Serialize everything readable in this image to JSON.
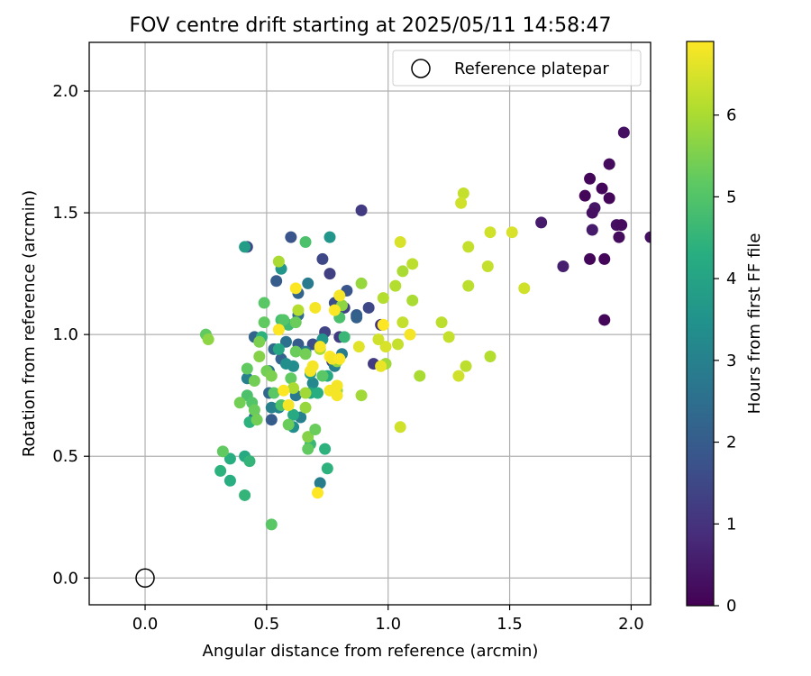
{
  "chart_data": {
    "type": "scatter",
    "title": "FOV centre drift starting at 2025/05/11 14:58:47",
    "xlabel": "Angular distance from reference (arcmin)",
    "ylabel": "Rotation from reference (arcmin)",
    "xlim": [
      -0.23,
      2.08
    ],
    "ylim": [
      -0.11,
      2.2
    ],
    "xticks": [
      "0.0",
      "0.5",
      "1.0",
      "1.5",
      "2.0"
    ],
    "yticks": [
      "0.0",
      "0.5",
      "1.0",
      "1.5",
      "2.0"
    ],
    "grid": true,
    "legend": {
      "position": "top-right",
      "label": "Reference platepar"
    },
    "reference_point": {
      "x": 0.0,
      "y": 0.0
    },
    "colorbar": {
      "label": "Hours from first FF file",
      "ticks": [
        "0",
        "1",
        "2",
        "3",
        "4",
        "5",
        "6"
      ],
      "range": [
        0,
        6.9
      ],
      "colormap": "viridis"
    },
    "points": [
      [
        1.97,
        1.83,
        0.3
      ],
      [
        1.91,
        1.7,
        0.2
      ],
      [
        1.83,
        1.64,
        0.1
      ],
      [
        1.88,
        1.6,
        0.1
      ],
      [
        1.81,
        1.57,
        0.1
      ],
      [
        1.91,
        1.56,
        0.1
      ],
      [
        1.85,
        1.52,
        0.4
      ],
      [
        1.84,
        1.5,
        0.3
      ],
      [
        1.63,
        1.46,
        0.5
      ],
      [
        1.94,
        1.45,
        0.3
      ],
      [
        1.96,
        1.45,
        0.2
      ],
      [
        1.84,
        1.43,
        0.5
      ],
      [
        1.95,
        1.4,
        0.2
      ],
      [
        2.08,
        1.4,
        0.3
      ],
      [
        1.83,
        1.31,
        0.1
      ],
      [
        1.89,
        1.31,
        0.1
      ],
      [
        1.72,
        1.28,
        0.6
      ],
      [
        1.89,
        1.06,
        0.1
      ],
      [
        0.89,
        1.51,
        1.2
      ],
      [
        0.42,
        1.36,
        1.5
      ],
      [
        0.6,
        1.4,
        1.8
      ],
      [
        0.73,
        1.31,
        1.5
      ],
      [
        0.76,
        1.25,
        1.3
      ],
      [
        0.54,
        1.22,
        2.0
      ],
      [
        0.63,
        1.17,
        2.2
      ],
      [
        0.67,
        1.21,
        2.8
      ],
      [
        0.83,
        1.18,
        1.8
      ],
      [
        0.78,
        1.13,
        1.6
      ],
      [
        0.82,
        1.11,
        1.4
      ],
      [
        0.92,
        1.11,
        1.5
      ],
      [
        0.87,
        1.08,
        2.0
      ],
      [
        0.74,
        1.01,
        1.4
      ],
      [
        0.8,
        0.99,
        1.2
      ],
      [
        0.63,
        1.08,
        2.4
      ],
      [
        0.45,
        0.99,
        2.2
      ],
      [
        0.52,
        0.65,
        2.0
      ],
      [
        0.87,
        1.07,
        2.1
      ],
      [
        0.94,
        0.88,
        1.2
      ],
      [
        0.97,
        1.04,
        1.0
      ],
      [
        0.77,
        0.89,
        1.3
      ],
      [
        0.78,
        0.89,
        1.1
      ],
      [
        0.69,
        0.96,
        1.6
      ],
      [
        0.63,
        0.96,
        2.0
      ],
      [
        0.58,
        0.97,
        2.6
      ],
      [
        0.53,
        0.94,
        2.4
      ],
      [
        0.56,
        0.9,
        2.2
      ],
      [
        0.51,
        0.76,
        2.3
      ],
      [
        0.45,
        0.66,
        2.5
      ],
      [
        0.51,
        0.85,
        2.7
      ],
      [
        0.42,
        0.82,
        3.0
      ],
      [
        0.66,
        0.93,
        2.9
      ],
      [
        0.69,
        0.8,
        3.2
      ],
      [
        0.62,
        0.75,
        2.8
      ],
      [
        0.64,
        0.66,
        3.0
      ],
      [
        0.72,
        0.39,
        2.9
      ],
      [
        0.52,
        0.7,
        3.0
      ],
      [
        0.55,
        0.7,
        3.1
      ],
      [
        0.81,
        0.92,
        2.9
      ],
      [
        0.78,
        0.87,
        3.0
      ],
      [
        0.61,
        0.87,
        3.3
      ],
      [
        0.58,
        0.88,
        3.4
      ],
      [
        0.61,
        0.62,
        3.4
      ],
      [
        0.41,
        1.36,
        3.8
      ],
      [
        0.56,
        1.27,
        3.6
      ],
      [
        0.76,
        1.4,
        3.6
      ],
      [
        0.73,
        0.98,
        3.6
      ],
      [
        0.68,
        0.84,
        3.7
      ],
      [
        0.68,
        0.76,
        4.1
      ],
      [
        0.75,
        0.83,
        4.2
      ],
      [
        0.71,
        0.76,
        4.3
      ],
      [
        0.55,
        0.94,
        4.1
      ],
      [
        0.48,
        0.99,
        4.4
      ],
      [
        0.61,
        0.67,
        4.2
      ],
      [
        0.43,
        0.64,
        4.4
      ],
      [
        0.41,
        0.5,
        4.2
      ],
      [
        0.43,
        0.48,
        4.5
      ],
      [
        0.35,
        0.49,
        4.3
      ],
      [
        0.31,
        0.44,
        4.4
      ],
      [
        0.35,
        0.4,
        4.3
      ],
      [
        0.41,
        0.34,
        4.5
      ],
      [
        0.68,
        0.55,
        4.6
      ],
      [
        0.74,
        0.53,
        4.4
      ],
      [
        0.75,
        0.45,
        4.4
      ],
      [
        0.82,
        0.99,
        4.6
      ],
      [
        0.66,
        1.38,
        4.9
      ],
      [
        0.8,
        1.07,
        4.9
      ],
      [
        0.59,
        1.04,
        4.7
      ],
      [
        0.56,
        1.06,
        4.8
      ],
      [
        0.49,
        1.13,
        5.1
      ],
      [
        0.49,
        1.05,
        5.2
      ],
      [
        0.57,
        1.06,
        5.0
      ],
      [
        0.62,
        1.05,
        5.3
      ],
      [
        0.25,
        1.0,
        5.2
      ],
      [
        0.47,
        0.97,
        5.5
      ],
      [
        0.53,
        0.76,
        5.1
      ],
      [
        0.56,
        0.71,
        4.9
      ],
      [
        0.42,
        0.75,
        4.9
      ],
      [
        0.44,
        0.72,
        5.0
      ],
      [
        0.45,
        0.69,
        5.3
      ],
      [
        0.46,
        0.65,
        5.4
      ],
      [
        0.39,
        0.72,
        5.4
      ],
      [
        0.42,
        0.86,
        5.2
      ],
      [
        0.45,
        0.81,
        5.4
      ],
      [
        0.47,
        0.91,
        5.6
      ],
      [
        0.5,
        0.85,
        5.4
      ],
      [
        0.52,
        0.83,
        5.5
      ],
      [
        0.59,
        0.63,
        5.3
      ],
      [
        0.67,
        0.58,
        5.6
      ],
      [
        0.67,
        0.53,
        5.2
      ],
      [
        0.7,
        0.61,
        5.3
      ],
      [
        0.73,
        0.83,
        5.1
      ],
      [
        0.32,
        0.52,
        5.2
      ],
      [
        0.52,
        0.22,
        5.1
      ],
      [
        0.26,
        0.98,
        5.7
      ],
      [
        0.6,
        0.82,
        5.2
      ],
      [
        0.62,
        0.93,
        5.3
      ],
      [
        0.66,
        0.92,
        5.4
      ],
      [
        0.66,
        0.7,
        5.8
      ],
      [
        0.66,
        0.76,
        5.9
      ],
      [
        0.61,
        0.78,
        6.0
      ],
      [
        0.72,
        0.94,
        6.0
      ],
      [
        0.79,
        0.89,
        5.8
      ],
      [
        0.79,
        0.77,
        5.7
      ],
      [
        0.89,
        0.75,
        5.9
      ],
      [
        0.89,
        1.21,
        5.8
      ],
      [
        0.81,
        1.12,
        5.7
      ],
      [
        0.99,
        0.88,
        5.9
      ],
      [
        0.55,
        1.3,
        6.0
      ],
      [
        0.63,
        1.1,
        6.1
      ],
      [
        1.05,
        1.38,
        6.5
      ],
      [
        1.31,
        1.58,
        6.3
      ],
      [
        1.3,
        1.54,
        6.4
      ],
      [
        1.1,
        1.29,
        6.2
      ],
      [
        1.06,
        1.26,
        6.0
      ],
      [
        1.03,
        1.2,
        6.1
      ],
      [
        1.33,
        1.36,
        6.3
      ],
      [
        1.41,
        1.28,
        6.3
      ],
      [
        1.42,
        1.42,
        6.4
      ],
      [
        1.51,
        1.42,
        6.5
      ],
      [
        1.56,
        1.19,
        6.4
      ],
      [
        1.33,
        1.2,
        6.2
      ],
      [
        0.98,
        1.15,
        6.1
      ],
      [
        1.1,
        1.14,
        6.0
      ],
      [
        1.06,
        1.05,
        6.3
      ],
      [
        1.22,
        1.05,
        6.2
      ],
      [
        1.25,
        0.99,
        6.3
      ],
      [
        1.13,
        0.83,
        6.0
      ],
      [
        1.29,
        0.83,
        6.4
      ],
      [
        1.32,
        0.87,
        6.2
      ],
      [
        1.42,
        0.91,
        6.1
      ],
      [
        1.04,
        0.96,
        6.3
      ],
      [
        1.05,
        0.62,
        6.4
      ],
      [
        0.99,
        0.95,
        6.5
      ],
      [
        0.96,
        0.98,
        6.4
      ],
      [
        0.98,
        1.04,
        6.5
      ],
      [
        0.88,
        0.95,
        6.6
      ],
      [
        0.62,
        1.19,
        6.9
      ],
      [
        0.55,
        1.02,
        6.9
      ],
      [
        0.72,
        0.95,
        6.8
      ],
      [
        0.76,
        0.91,
        6.9
      ],
      [
        0.77,
        0.9,
        6.8
      ],
      [
        0.8,
        0.9,
        6.9
      ],
      [
        0.8,
        1.16,
        6.8
      ],
      [
        0.78,
        1.1,
        6.9
      ],
      [
        0.7,
        1.11,
        6.8
      ],
      [
        0.57,
        0.77,
        6.9
      ],
      [
        0.68,
        0.85,
        6.8
      ],
      [
        0.69,
        0.87,
        6.8
      ],
      [
        0.71,
        0.35,
        6.9
      ],
      [
        0.76,
        0.77,
        6.8
      ],
      [
        0.79,
        0.79,
        6.8
      ],
      [
        0.79,
        0.75,
        6.8
      ],
      [
        0.59,
        0.71,
        6.8
      ],
      [
        0.98,
        1.04,
        6.9
      ],
      [
        1.09,
        1.0,
        6.8
      ],
      [
        0.97,
        0.87,
        6.7
      ]
    ]
  }
}
